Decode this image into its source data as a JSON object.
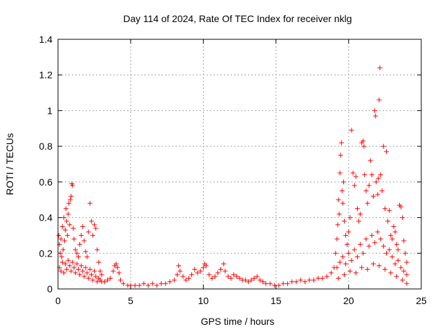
{
  "chart_data": {
    "type": "scatter",
    "title": "Day 114 of 2024, Rate Of TEC Index for receiver nklg",
    "xlabel": "GPS time / hours",
    "ylabel": "ROTI / TECUs",
    "xlim": [
      0,
      25
    ],
    "ylim": [
      0,
      1.4
    ],
    "x_ticks": [
      "0",
      "5",
      "10",
      "15",
      "20",
      "25"
    ],
    "y_ticks": [
      "0",
      "0.2",
      "0.4",
      "0.6",
      "0.8",
      "1",
      "1.2",
      "1.4"
    ],
    "grid": true,
    "marker": "+",
    "color": "#ff0000",
    "series": [
      {
        "points": [
          [
            0.05,
            0.3
          ],
          [
            0.1,
            0.25
          ],
          [
            0.15,
            0.2
          ],
          [
            0.2,
            0.28
          ],
          [
            0.25,
            0.18
          ],
          [
            0.3,
            0.35
          ],
          [
            0.35,
            0.22
          ],
          [
            0.4,
            0.4
          ],
          [
            0.45,
            0.27
          ],
          [
            0.5,
            0.33
          ],
          [
            0.55,
            0.45
          ],
          [
            0.6,
            0.38
          ],
          [
            0.65,
            0.3
          ],
          [
            0.7,
            0.42
          ],
          [
            0.75,
            0.48
          ],
          [
            0.8,
            0.36
          ],
          [
            0.85,
            0.5
          ],
          [
            0.9,
            0.52
          ],
          [
            0.95,
            0.59
          ],
          [
            1.0,
            0.58
          ],
          [
            1.05,
            0.34
          ],
          [
            1.1,
            0.28
          ],
          [
            1.2,
            0.22
          ],
          [
            1.3,
            0.2
          ],
          [
            1.4,
            0.18
          ],
          [
            1.5,
            0.25
          ],
          [
            1.6,
            0.3
          ],
          [
            1.7,
            0.35
          ],
          [
            1.8,
            0.27
          ],
          [
            1.9,
            0.21
          ],
          [
            2.0,
            0.18
          ],
          [
            2.1,
            0.32
          ],
          [
            2.2,
            0.48
          ],
          [
            2.3,
            0.38
          ],
          [
            2.4,
            0.3
          ],
          [
            2.5,
            0.36
          ],
          [
            2.6,
            0.34
          ],
          [
            2.7,
            0.22
          ],
          [
            2.8,
            0.15
          ],
          [
            2.9,
            0.1
          ],
          [
            3.0,
            0.08
          ],
          [
            0.1,
            0.12
          ],
          [
            0.2,
            0.1
          ],
          [
            0.3,
            0.15
          ],
          [
            0.4,
            0.09
          ],
          [
            0.5,
            0.14
          ],
          [
            0.6,
            0.11
          ],
          [
            0.7,
            0.16
          ],
          [
            0.8,
            0.13
          ],
          [
            0.9,
            0.1
          ],
          [
            1.0,
            0.15
          ],
          [
            1.1,
            0.12
          ],
          [
            1.2,
            0.09
          ],
          [
            1.3,
            0.14
          ],
          [
            1.4,
            0.11
          ],
          [
            1.5,
            0.08
          ],
          [
            1.6,
            0.13
          ],
          [
            1.7,
            0.1
          ],
          [
            1.8,
            0.07
          ],
          [
            1.9,
            0.12
          ],
          [
            2.0,
            0.09
          ],
          [
            2.1,
            0.06
          ],
          [
            2.2,
            0.11
          ],
          [
            2.3,
            0.08
          ],
          [
            2.4,
            0.05
          ],
          [
            2.5,
            0.1
          ],
          [
            2.6,
            0.07
          ],
          [
            2.7,
            0.04
          ],
          [
            2.8,
            0.06
          ],
          [
            2.9,
            0.05
          ],
          [
            3.0,
            0.04
          ],
          [
            3.2,
            0.04
          ],
          [
            3.4,
            0.05
          ],
          [
            3.6,
            0.06
          ],
          [
            3.8,
            0.1
          ],
          [
            3.9,
            0.13
          ],
          [
            4.0,
            0.14
          ],
          [
            4.1,
            0.12
          ],
          [
            4.2,
            0.09
          ],
          [
            4.3,
            0.05
          ],
          [
            4.5,
            0.03
          ],
          [
            4.8,
            0.02
          ],
          [
            5.0,
            0.02
          ],
          [
            5.3,
            0.02
          ],
          [
            5.6,
            0.02
          ],
          [
            5.9,
            0.03
          ],
          [
            6.2,
            0.02
          ],
          [
            6.5,
            0.03
          ],
          [
            6.8,
            0.02
          ],
          [
            7.1,
            0.03
          ],
          [
            7.4,
            0.03
          ],
          [
            7.7,
            0.04
          ],
          [
            8.0,
            0.05
          ],
          [
            8.2,
            0.08
          ],
          [
            8.3,
            0.13
          ],
          [
            8.4,
            0.1
          ],
          [
            8.6,
            0.07
          ],
          [
            8.8,
            0.05
          ],
          [
            9.0,
            0.06
          ],
          [
            9.2,
            0.08
          ],
          [
            9.4,
            0.11
          ],
          [
            9.6,
            0.09
          ],
          [
            9.8,
            0.1
          ],
          [
            10.0,
            0.12
          ],
          [
            10.1,
            0.14
          ],
          [
            10.2,
            0.13
          ],
          [
            10.4,
            0.08
          ],
          [
            10.6,
            0.06
          ],
          [
            10.8,
            0.07
          ],
          [
            11.0,
            0.09
          ],
          [
            11.2,
            0.11
          ],
          [
            11.4,
            0.14
          ],
          [
            11.5,
            0.1
          ],
          [
            11.7,
            0.07
          ],
          [
            11.9,
            0.06
          ],
          [
            12.1,
            0.08
          ],
          [
            12.3,
            0.07
          ],
          [
            12.5,
            0.06
          ],
          [
            12.7,
            0.05
          ],
          [
            12.9,
            0.05
          ],
          [
            13.1,
            0.04
          ],
          [
            13.3,
            0.05
          ],
          [
            13.5,
            0.06
          ],
          [
            13.7,
            0.07
          ],
          [
            13.9,
            0.05
          ],
          [
            14.1,
            0.04
          ],
          [
            14.3,
            0.03
          ],
          [
            14.6,
            0.03
          ],
          [
            14.9,
            0.02
          ],
          [
            15.2,
            0.02
          ],
          [
            15.5,
            0.03
          ],
          [
            15.8,
            0.03
          ],
          [
            16.1,
            0.04
          ],
          [
            16.4,
            0.04
          ],
          [
            16.7,
            0.05
          ],
          [
            17.0,
            0.04
          ],
          [
            17.3,
            0.05
          ],
          [
            17.6,
            0.05
          ],
          [
            17.9,
            0.06
          ],
          [
            18.2,
            0.06
          ],
          [
            18.5,
            0.07
          ],
          [
            18.8,
            0.09
          ],
          [
            19.0,
            0.12
          ],
          [
            19.1,
            0.2
          ],
          [
            19.2,
            0.28
          ],
          [
            19.25,
            0.36
          ],
          [
            19.3,
            0.5
          ],
          [
            19.35,
            0.42
          ],
          [
            19.4,
            0.65
          ],
          [
            19.45,
            0.75
          ],
          [
            19.5,
            0.82
          ],
          [
            19.55,
            0.55
          ],
          [
            19.6,
            0.48
          ],
          [
            19.65,
            0.6
          ],
          [
            19.7,
            0.38
          ],
          [
            19.8,
            0.3
          ],
          [
            19.9,
            0.25
          ],
          [
            20.0,
            0.32
          ],
          [
            20.1,
            0.4
          ],
          [
            20.2,
            0.89
          ],
          [
            20.3,
            0.65
          ],
          [
            20.4,
            0.58
          ],
          [
            20.5,
            0.63
          ],
          [
            20.6,
            0.45
          ],
          [
            20.7,
            0.38
          ],
          [
            20.8,
            0.42
          ],
          [
            20.9,
            0.82
          ],
          [
            21.0,
            0.83
          ],
          [
            21.05,
            0.8
          ],
          [
            21.1,
            0.64
          ],
          [
            21.2,
            0.55
          ],
          [
            21.3,
            0.48
          ],
          [
            21.4,
            0.58
          ],
          [
            21.5,
            0.72
          ],
          [
            21.6,
            0.64
          ],
          [
            21.7,
            0.52
          ],
          [
            21.8,
            1.0
          ],
          [
            21.85,
            0.97
          ],
          [
            21.9,
            0.6
          ],
          [
            22.0,
            0.53
          ],
          [
            22.05,
            0.62
          ],
          [
            22.1,
            1.06
          ],
          [
            22.15,
            1.24
          ],
          [
            22.2,
            0.64
          ],
          [
            22.3,
            0.55
          ],
          [
            22.4,
            0.8
          ],
          [
            22.5,
            0.45
          ],
          [
            22.6,
            0.77
          ],
          [
            22.7,
            0.38
          ],
          [
            22.8,
            0.44
          ],
          [
            22.9,
            0.3
          ],
          [
            23.0,
            0.28
          ],
          [
            23.1,
            0.35
          ],
          [
            23.2,
            0.32
          ],
          [
            23.3,
            0.25
          ],
          [
            23.4,
            0.22
          ],
          [
            23.5,
            0.47
          ],
          [
            23.6,
            0.46
          ],
          [
            23.7,
            0.4
          ],
          [
            23.8,
            0.27
          ],
          [
            23.9,
            0.2
          ],
          [
            24.0,
            0.15
          ],
          [
            19.2,
            0.12
          ],
          [
            19.4,
            0.15
          ],
          [
            19.6,
            0.18
          ],
          [
            19.8,
            0.14
          ],
          [
            20.0,
            0.2
          ],
          [
            20.2,
            0.16
          ],
          [
            20.4,
            0.22
          ],
          [
            20.6,
            0.18
          ],
          [
            20.8,
            0.25
          ],
          [
            21.0,
            0.2
          ],
          [
            21.2,
            0.28
          ],
          [
            21.4,
            0.24
          ],
          [
            21.6,
            0.3
          ],
          [
            21.8,
            0.26
          ],
          [
            22.0,
            0.32
          ],
          [
            22.2,
            0.28
          ],
          [
            22.4,
            0.24
          ],
          [
            22.6,
            0.2
          ],
          [
            22.8,
            0.22
          ],
          [
            23.0,
            0.18
          ],
          [
            23.2,
            0.14
          ],
          [
            23.4,
            0.16
          ],
          [
            23.6,
            0.12
          ],
          [
            23.8,
            0.1
          ],
          [
            24.0,
            0.08
          ],
          [
            19.3,
            0.06
          ],
          [
            19.7,
            0.08
          ],
          [
            20.1,
            0.1
          ],
          [
            20.5,
            0.09
          ],
          [
            20.9,
            0.12
          ],
          [
            21.3,
            0.11
          ],
          [
            21.7,
            0.14
          ],
          [
            22.1,
            0.13
          ],
          [
            22.5,
            0.11
          ],
          [
            22.9,
            0.09
          ],
          [
            23.3,
            0.07
          ],
          [
            23.7,
            0.05
          ],
          [
            24.0,
            0.03
          ]
        ]
      }
    ]
  }
}
